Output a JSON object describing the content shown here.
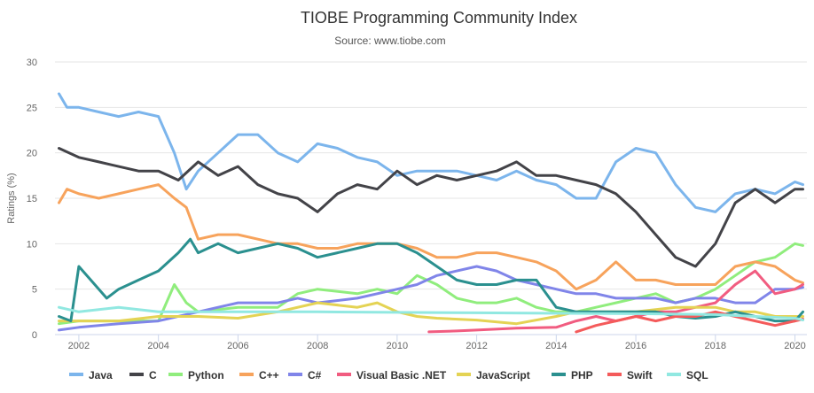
{
  "chart_data": {
    "type": "line",
    "title": "TIOBE Programming Community Index",
    "subtitle": "Source: www.tiobe.com",
    "xlabel": "",
    "ylabel": "Ratings (%)",
    "xlim": [
      2001.4,
      2020.3
    ],
    "ylim": [
      0,
      30
    ],
    "yticks": [
      "0",
      "5",
      "10",
      "15",
      "20",
      "25",
      "30"
    ],
    "xticks": [
      "2002",
      "2004",
      "2006",
      "2008",
      "2010",
      "2012",
      "2014",
      "2016",
      "2018",
      "2020"
    ],
    "grid": true,
    "legend": "bottom",
    "series": [
      {
        "name": "Java",
        "color": "#7cb5ec",
        "points": [
          [
            2001.5,
            26.5
          ],
          [
            2001.7,
            25
          ],
          [
            2002,
            25
          ],
          [
            2002.5,
            24.5
          ],
          [
            2003,
            24
          ],
          [
            2003.5,
            24.5
          ],
          [
            2004,
            24
          ],
          [
            2004.4,
            20
          ],
          [
            2004.7,
            16
          ],
          [
            2005,
            18
          ],
          [
            2005.5,
            20
          ],
          [
            2006,
            22
          ],
          [
            2006.5,
            22
          ],
          [
            2007,
            20
          ],
          [
            2007.5,
            19
          ],
          [
            2008,
            21
          ],
          [
            2008.5,
            20.5
          ],
          [
            2009,
            19.5
          ],
          [
            2009.5,
            19
          ],
          [
            2010,
            17.5
          ],
          [
            2010.5,
            18
          ],
          [
            2011,
            18
          ],
          [
            2011.5,
            18
          ],
          [
            2012,
            17.5
          ],
          [
            2012.5,
            17
          ],
          [
            2013,
            18
          ],
          [
            2013.5,
            17
          ],
          [
            2014,
            16.5
          ],
          [
            2014.5,
            15
          ],
          [
            2015,
            15
          ],
          [
            2015.5,
            19
          ],
          [
            2016,
            20.5
          ],
          [
            2016.5,
            20
          ],
          [
            2017,
            16.5
          ],
          [
            2017.5,
            14
          ],
          [
            2018,
            13.5
          ],
          [
            2018.5,
            15.5
          ],
          [
            2019,
            16
          ],
          [
            2019.5,
            15.5
          ],
          [
            2020,
            16.8
          ],
          [
            2020.2,
            16.5
          ]
        ]
      },
      {
        "name": "C",
        "color": "#434348",
        "points": [
          [
            2001.5,
            20.5
          ],
          [
            2002,
            19.5
          ],
          [
            2002.5,
            19
          ],
          [
            2003,
            18.5
          ],
          [
            2003.5,
            18
          ],
          [
            2004,
            18
          ],
          [
            2004.5,
            17
          ],
          [
            2005,
            19
          ],
          [
            2005.5,
            17.5
          ],
          [
            2006,
            18.5
          ],
          [
            2006.5,
            16.5
          ],
          [
            2007,
            15.5
          ],
          [
            2007.5,
            15
          ],
          [
            2008,
            13.5
          ],
          [
            2008.5,
            15.5
          ],
          [
            2009,
            16.5
          ],
          [
            2009.5,
            16
          ],
          [
            2010,
            18
          ],
          [
            2010.5,
            16.5
          ],
          [
            2011,
            17.5
          ],
          [
            2011.5,
            17
          ],
          [
            2012,
            17.5
          ],
          [
            2012.5,
            18
          ],
          [
            2013,
            19
          ],
          [
            2013.5,
            17.5
          ],
          [
            2014,
            17.5
          ],
          [
            2014.5,
            17
          ],
          [
            2015,
            16.5
          ],
          [
            2015.5,
            15.5
          ],
          [
            2016,
            13.5
          ],
          [
            2016.5,
            11
          ],
          [
            2017,
            8.5
          ],
          [
            2017.5,
            7.5
          ],
          [
            2018,
            10
          ],
          [
            2018.5,
            14.5
          ],
          [
            2019,
            16
          ],
          [
            2019.5,
            14.5
          ],
          [
            2020,
            16
          ],
          [
            2020.2,
            16
          ]
        ]
      },
      {
        "name": "Python",
        "color": "#90ed7d",
        "points": [
          [
            2001.5,
            1.2
          ],
          [
            2002,
            1.5
          ],
          [
            2003,
            1.5
          ],
          [
            2004,
            1.5
          ],
          [
            2004.4,
            5.5
          ],
          [
            2004.7,
            3.5
          ],
          [
            2005,
            2.5
          ],
          [
            2006,
            3
          ],
          [
            2007,
            3
          ],
          [
            2007.5,
            4.5
          ],
          [
            2008,
            5
          ],
          [
            2009,
            4.5
          ],
          [
            2009.5,
            5
          ],
          [
            2010,
            4.5
          ],
          [
            2010.5,
            6.5
          ],
          [
            2011,
            5.5
          ],
          [
            2011.5,
            4
          ],
          [
            2012,
            3.5
          ],
          [
            2012.5,
            3.5
          ],
          [
            2013,
            4
          ],
          [
            2013.5,
            3
          ],
          [
            2014,
            2.5
          ],
          [
            2014.5,
            2.5
          ],
          [
            2015,
            3
          ],
          [
            2015.5,
            3.5
          ],
          [
            2016,
            4
          ],
          [
            2016.5,
            4.5
          ],
          [
            2017,
            3.5
          ],
          [
            2017.5,
            4
          ],
          [
            2018,
            5
          ],
          [
            2018.5,
            6.5
          ],
          [
            2019,
            8
          ],
          [
            2019.5,
            8.5
          ],
          [
            2020,
            10
          ],
          [
            2020.2,
            9.8
          ]
        ]
      },
      {
        "name": "C++",
        "color": "#f7a35c",
        "points": [
          [
            2001.5,
            14.5
          ],
          [
            2001.7,
            16
          ],
          [
            2002,
            15.5
          ],
          [
            2002.5,
            15
          ],
          [
            2003,
            15.5
          ],
          [
            2003.5,
            16
          ],
          [
            2004,
            16.5
          ],
          [
            2004.4,
            15
          ],
          [
            2004.7,
            14
          ],
          [
            2005,
            10.5
          ],
          [
            2005.5,
            11
          ],
          [
            2006,
            11
          ],
          [
            2006.5,
            10.5
          ],
          [
            2007,
            10
          ],
          [
            2007.5,
            10
          ],
          [
            2008,
            9.5
          ],
          [
            2008.5,
            9.5
          ],
          [
            2009,
            10
          ],
          [
            2009.5,
            10
          ],
          [
            2010,
            10
          ],
          [
            2010.5,
            9.5
          ],
          [
            2011,
            8.5
          ],
          [
            2011.5,
            8.5
          ],
          [
            2012,
            9
          ],
          [
            2012.5,
            9
          ],
          [
            2013,
            8.5
          ],
          [
            2013.5,
            8
          ],
          [
            2014,
            7
          ],
          [
            2014.5,
            5
          ],
          [
            2015,
            6
          ],
          [
            2015.5,
            8
          ],
          [
            2016,
            6
          ],
          [
            2016.5,
            6
          ],
          [
            2017,
            5.5
          ],
          [
            2017.5,
            5.5
          ],
          [
            2018,
            5.5
          ],
          [
            2018.5,
            7.5
          ],
          [
            2019,
            8
          ],
          [
            2019.5,
            7.5
          ],
          [
            2020,
            6
          ],
          [
            2020.2,
            5.7
          ]
        ]
      },
      {
        "name": "C#",
        "color": "#8085e9",
        "points": [
          [
            2001.5,
            0.5
          ],
          [
            2002,
            0.8
          ],
          [
            2003,
            1.2
          ],
          [
            2004,
            1.5
          ],
          [
            2005,
            2.5
          ],
          [
            2006,
            3.5
          ],
          [
            2007,
            3.5
          ],
          [
            2007.5,
            4
          ],
          [
            2008,
            3.5
          ],
          [
            2009,
            4
          ],
          [
            2009.5,
            4.5
          ],
          [
            2010,
            5
          ],
          [
            2010.5,
            5.5
          ],
          [
            2011,
            6.5
          ],
          [
            2011.5,
            7
          ],
          [
            2012,
            7.5
          ],
          [
            2012.5,
            7
          ],
          [
            2013,
            6
          ],
          [
            2013.5,
            5.5
          ],
          [
            2014,
            5
          ],
          [
            2014.5,
            4.5
          ],
          [
            2015,
            4.5
          ],
          [
            2015.5,
            4
          ],
          [
            2016,
            4
          ],
          [
            2016.5,
            4
          ],
          [
            2017,
            3.5
          ],
          [
            2017.5,
            4
          ],
          [
            2018,
            4
          ],
          [
            2018.5,
            3.5
          ],
          [
            2019,
            3.5
          ],
          [
            2019.5,
            5
          ],
          [
            2020,
            5
          ],
          [
            2020.2,
            5.2
          ]
        ]
      },
      {
        "name": "Visual Basic .NET",
        "color": "#f15c80",
        "points": [
          [
            2010.8,
            0.3
          ],
          [
            2011.5,
            0.4
          ],
          [
            2012,
            0.5
          ],
          [
            2013,
            0.7
          ],
          [
            2014,
            0.8
          ],
          [
            2014.5,
            1.5
          ],
          [
            2015,
            2
          ],
          [
            2015.5,
            1.5
          ],
          [
            2016,
            2
          ],
          [
            2016.5,
            2.5
          ],
          [
            2017,
            2.5
          ],
          [
            2017.5,
            3
          ],
          [
            2018,
            3.5
          ],
          [
            2018.5,
            5.5
          ],
          [
            2019,
            7
          ],
          [
            2019.5,
            4.5
          ],
          [
            2020,
            5
          ],
          [
            2020.2,
            5.5
          ]
        ]
      },
      {
        "name": "JavaScript",
        "color": "#e4d354",
        "points": [
          [
            2001.5,
            1.5
          ],
          [
            2002,
            1.5
          ],
          [
            2003,
            1.5
          ],
          [
            2004,
            2
          ],
          [
            2005,
            2
          ],
          [
            2006,
            1.8
          ],
          [
            2007,
            2.5
          ],
          [
            2008,
            3.5
          ],
          [
            2009,
            3
          ],
          [
            2009.5,
            3.5
          ],
          [
            2010,
            2.5
          ],
          [
            2010.5,
            2
          ],
          [
            2011,
            1.8
          ],
          [
            2012,
            1.6
          ],
          [
            2013,
            1.2
          ],
          [
            2014,
            2
          ],
          [
            2014.5,
            2.5
          ],
          [
            2015,
            2.5
          ],
          [
            2016,
            2.5
          ],
          [
            2017,
            3
          ],
          [
            2017.5,
            3
          ],
          [
            2018,
            3
          ],
          [
            2018.5,
            2.5
          ],
          [
            2019,
            2.5
          ],
          [
            2019.5,
            2
          ],
          [
            2020,
            2
          ],
          [
            2020.2,
            2
          ]
        ]
      },
      {
        "name": "PHP",
        "color": "#2b908f",
        "points": [
          [
            2001.5,
            2
          ],
          [
            2001.8,
            1.5
          ],
          [
            2002,
            7.5
          ],
          [
            2002.3,
            6
          ],
          [
            2002.7,
            4
          ],
          [
            2003,
            5
          ],
          [
            2003.5,
            6
          ],
          [
            2004,
            7
          ],
          [
            2004.5,
            9
          ],
          [
            2004.8,
            10.5
          ],
          [
            2005,
            9
          ],
          [
            2005.5,
            10
          ],
          [
            2006,
            9
          ],
          [
            2006.5,
            9.5
          ],
          [
            2007,
            10
          ],
          [
            2007.5,
            9.5
          ],
          [
            2008,
            8.5
          ],
          [
            2008.5,
            9
          ],
          [
            2009,
            9.5
          ],
          [
            2009.5,
            10
          ],
          [
            2010,
            10
          ],
          [
            2010.5,
            9
          ],
          [
            2011,
            7.5
          ],
          [
            2011.5,
            6
          ],
          [
            2012,
            5.5
          ],
          [
            2012.5,
            5.5
          ],
          [
            2013,
            6
          ],
          [
            2013.5,
            6
          ],
          [
            2014,
            3
          ],
          [
            2014.5,
            2.5
          ],
          [
            2015,
            2.5
          ],
          [
            2015.5,
            2.5
          ],
          [
            2016,
            2.5
          ],
          [
            2016.5,
            2.5
          ],
          [
            2017,
            2
          ],
          [
            2017.5,
            1.8
          ],
          [
            2018,
            2
          ],
          [
            2018.5,
            2.5
          ],
          [
            2019,
            2
          ],
          [
            2019.5,
            1.5
          ],
          [
            2020,
            1.5
          ],
          [
            2020.2,
            2.5
          ]
        ]
      },
      {
        "name": "Swift",
        "color": "#f45b5b",
        "points": [
          [
            2014.5,
            0.3
          ],
          [
            2015,
            1
          ],
          [
            2015.5,
            1.5
          ],
          [
            2016,
            2
          ],
          [
            2016.5,
            1.5
          ],
          [
            2017,
            2
          ],
          [
            2017.5,
            2
          ],
          [
            2018,
            2.5
          ],
          [
            2018.5,
            2
          ],
          [
            2019,
            1.5
          ],
          [
            2019.5,
            1
          ],
          [
            2020,
            1.5
          ],
          [
            2020.2,
            1.7
          ]
        ]
      },
      {
        "name": "SQL",
        "color": "#91e8e1",
        "points": [
          [
            2001.5,
            3
          ],
          [
            2002,
            2.5
          ],
          [
            2003,
            3
          ],
          [
            2004,
            2.5
          ],
          [
            2005,
            2.5
          ],
          [
            2008,
            2.5
          ],
          [
            2012,
            2.4
          ],
          [
            2016,
            2.3
          ],
          [
            2018,
            2.2
          ],
          [
            2019,
            2
          ],
          [
            2020,
            1.8
          ],
          [
            2020.2,
            1.6
          ]
        ]
      }
    ]
  }
}
